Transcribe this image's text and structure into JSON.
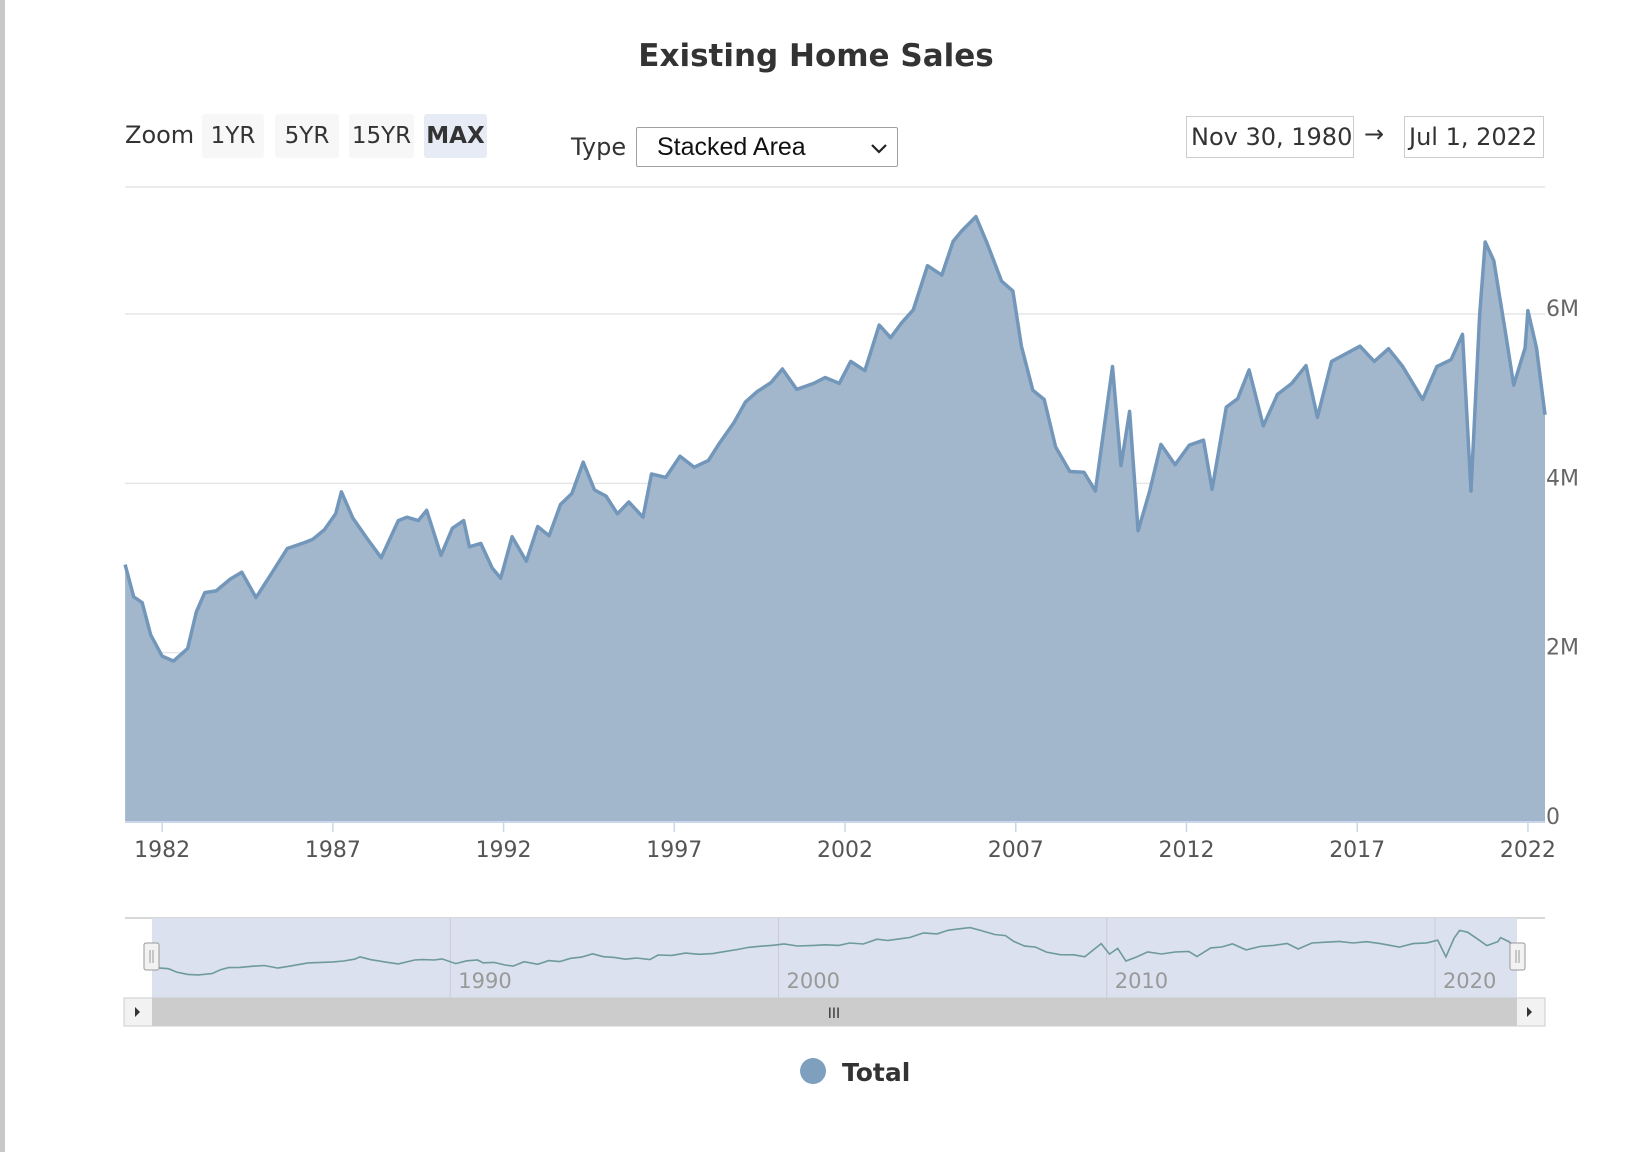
{
  "title": "Existing Home Sales",
  "zoom": {
    "label": "Zoom",
    "buttons": [
      "1YR",
      "5YR",
      "15YR",
      "MAX"
    ],
    "active": "MAX"
  },
  "type_selector": {
    "label": "Type",
    "value": "Stacked Area"
  },
  "date_range": {
    "from": "Nov 30, 1980",
    "arrow": "→",
    "to": "Jul 1, 2022"
  },
  "legend": {
    "items": [
      {
        "name": "Total",
        "color": "#7f9fbf"
      }
    ]
  },
  "colors": {
    "area_fill": "#a2b7cc",
    "area_line": "#7397ba",
    "navigator_fill": "#dbe1ee",
    "navigator_line": "#6e9a9a",
    "scrollbar": "#cccccc"
  },
  "navigator": {
    "tick_labels": [
      "1990",
      "2000",
      "2010",
      "2020"
    ],
    "scroll_grip": "III"
  },
  "chart_data": {
    "type": "area",
    "title": "Existing Home Sales",
    "x_range": [
      "1980-11-30",
      "2022-07-01"
    ],
    "y_range": [
      0,
      7500000
    ],
    "y_ticks": [
      0,
      2000000,
      4000000,
      6000000
    ],
    "y_tick_labels": [
      "0",
      "2M",
      "4M",
      "6M"
    ],
    "x_ticks": [
      1982,
      1987,
      1992,
      1997,
      2002,
      2007,
      2012,
      2017,
      2022
    ],
    "x_tick_labels": [
      "1982",
      "1987",
      "1992",
      "1997",
      "2002",
      "2007",
      "2012",
      "2017",
      "2022"
    ],
    "grid": true,
    "legend_position": "bottom-center",
    "series": [
      {
        "name": "Total",
        "points": [
          [
            "1980-12",
            3040000
          ],
          [
            "1981-03",
            2660000
          ],
          [
            "1981-06",
            2590000
          ],
          [
            "1981-09",
            2210000
          ],
          [
            "1982-01",
            1960000
          ],
          [
            "1982-05",
            1900000
          ],
          [
            "1982-10",
            2050000
          ],
          [
            "1983-01",
            2480000
          ],
          [
            "1983-04",
            2710000
          ],
          [
            "1983-08",
            2730000
          ],
          [
            "1984-01",
            2870000
          ],
          [
            "1984-05",
            2950000
          ],
          [
            "1984-10",
            2650000
          ],
          [
            "1985-03",
            2910000
          ],
          [
            "1985-09",
            3230000
          ],
          [
            "1986-03",
            3300000
          ],
          [
            "1986-06",
            3340000
          ],
          [
            "1986-10",
            3450000
          ],
          [
            "1987-02",
            3640000
          ],
          [
            "1987-04",
            3900000
          ],
          [
            "1987-08",
            3590000
          ],
          [
            "1988-01",
            3350000
          ],
          [
            "1988-06",
            3120000
          ],
          [
            "1988-12",
            3560000
          ],
          [
            "1989-03",
            3600000
          ],
          [
            "1989-07",
            3560000
          ],
          [
            "1989-10",
            3680000
          ],
          [
            "1990-03",
            3150000
          ],
          [
            "1990-07",
            3470000
          ],
          [
            "1990-11",
            3560000
          ],
          [
            "1991-01",
            3250000
          ],
          [
            "1991-05",
            3290000
          ],
          [
            "1991-09",
            3000000
          ],
          [
            "1991-12",
            2880000
          ],
          [
            "1992-04",
            3370000
          ],
          [
            "1992-09",
            3080000
          ],
          [
            "1993-01",
            3490000
          ],
          [
            "1993-05",
            3380000
          ],
          [
            "1993-09",
            3750000
          ],
          [
            "1994-01",
            3880000
          ],
          [
            "1994-05",
            4250000
          ],
          [
            "1994-09",
            3920000
          ],
          [
            "1995-01",
            3850000
          ],
          [
            "1995-05",
            3640000
          ],
          [
            "1995-09",
            3780000
          ],
          [
            "1996-02",
            3600000
          ],
          [
            "1996-05",
            4110000
          ],
          [
            "1996-10",
            4070000
          ],
          [
            "1997-03",
            4320000
          ],
          [
            "1997-08",
            4190000
          ],
          [
            "1998-01",
            4270000
          ],
          [
            "1998-05",
            4480000
          ],
          [
            "1998-10",
            4720000
          ],
          [
            "1999-02",
            4960000
          ],
          [
            "1999-06",
            5080000
          ],
          [
            "1999-11",
            5190000
          ],
          [
            "2000-03",
            5350000
          ],
          [
            "2000-08",
            5110000
          ],
          [
            "2001-02",
            5180000
          ],
          [
            "2001-06",
            5250000
          ],
          [
            "2001-11",
            5180000
          ],
          [
            "2002-03",
            5440000
          ],
          [
            "2002-08",
            5330000
          ],
          [
            "2003-01",
            5870000
          ],
          [
            "2003-05",
            5720000
          ],
          [
            "2003-09",
            5900000
          ],
          [
            "2004-01",
            6050000
          ],
          [
            "2004-06",
            6570000
          ],
          [
            "2004-11",
            6460000
          ],
          [
            "2005-03",
            6860000
          ],
          [
            "2005-06",
            6980000
          ],
          [
            "2005-11",
            7150000
          ],
          [
            "2006-03",
            6830000
          ],
          [
            "2006-08",
            6390000
          ],
          [
            "2006-12",
            6270000
          ],
          [
            "2007-03",
            5620000
          ],
          [
            "2007-07",
            5100000
          ],
          [
            "2007-11",
            4990000
          ],
          [
            "2008-03",
            4430000
          ],
          [
            "2008-08",
            4140000
          ],
          [
            "2009-01",
            4130000
          ],
          [
            "2009-05",
            3910000
          ],
          [
            "2009-11",
            5380000
          ],
          [
            "2010-02",
            4210000
          ],
          [
            "2010-05",
            4850000
          ],
          [
            "2010-08",
            3440000
          ],
          [
            "2010-12",
            3900000
          ],
          [
            "2011-04",
            4460000
          ],
          [
            "2011-09",
            4220000
          ],
          [
            "2012-02",
            4450000
          ],
          [
            "2012-07",
            4510000
          ],
          [
            "2012-10",
            3930000
          ],
          [
            "2013-03",
            4900000
          ],
          [
            "2013-07",
            5000000
          ],
          [
            "2013-11",
            5340000
          ],
          [
            "2014-04",
            4680000
          ],
          [
            "2014-09",
            5050000
          ],
          [
            "2015-02",
            5180000
          ],
          [
            "2015-07",
            5390000
          ],
          [
            "2015-11",
            4780000
          ],
          [
            "2016-04",
            5440000
          ],
          [
            "2016-09",
            5530000
          ],
          [
            "2017-02",
            5620000
          ],
          [
            "2017-07",
            5440000
          ],
          [
            "2017-12",
            5590000
          ],
          [
            "2018-05",
            5380000
          ],
          [
            "2018-12",
            4990000
          ],
          [
            "2019-05",
            5380000
          ],
          [
            "2019-10",
            5460000
          ],
          [
            "2020-02",
            5760000
          ],
          [
            "2020-05",
            3910000
          ],
          [
            "2020-08",
            5980000
          ],
          [
            "2020-10",
            6850000
          ],
          [
            "2021-01",
            6630000
          ],
          [
            "2021-05",
            5800000
          ],
          [
            "2021-08",
            5160000
          ],
          [
            "2021-12",
            5600000
          ],
          [
            "2022-01",
            6040000
          ],
          [
            "2022-04",
            5600000
          ],
          [
            "2022-07",
            4810000
          ]
        ]
      }
    ]
  }
}
